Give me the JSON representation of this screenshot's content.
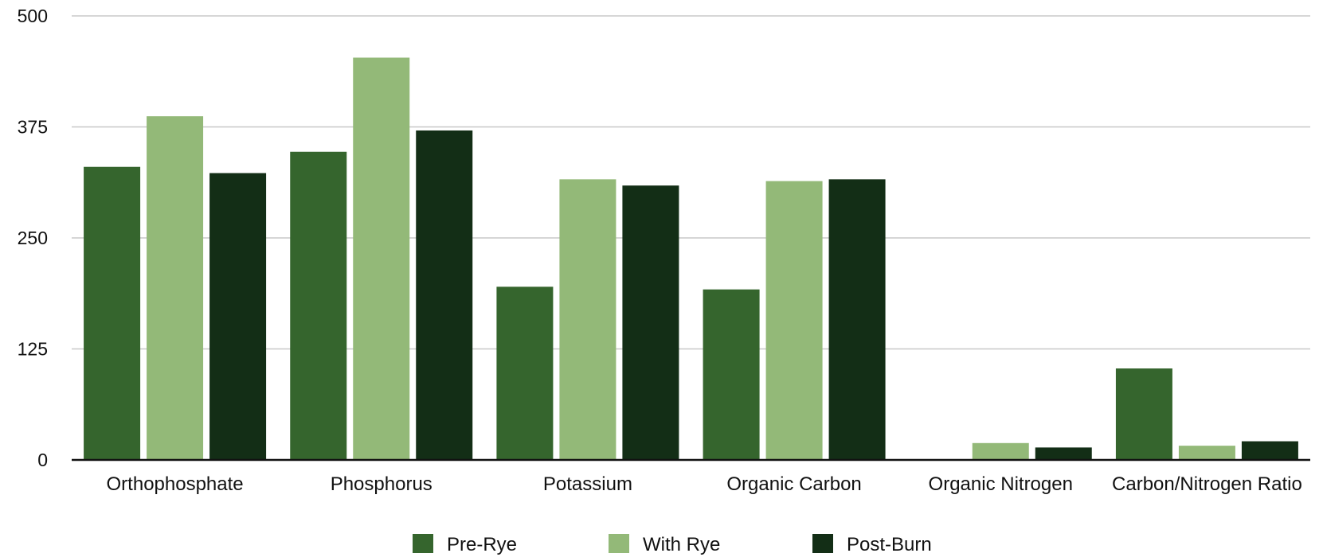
{
  "chart_data": {
    "type": "bar",
    "title": "",
    "xlabel": "",
    "ylabel": "",
    "ylim": [
      0,
      500
    ],
    "yticks": [
      "0",
      "125",
      "250",
      "375",
      "500"
    ],
    "grid": true,
    "legend_position": "bottom-center",
    "categories": [
      "Orthophosphate",
      "Phosphorus",
      "Potassium",
      "Organic Carbon",
      "Organic Nitrogen",
      "Carbon/Nitrogen Ratio"
    ],
    "series": [
      {
        "name": "Pre-Rye",
        "color": "#35652d",
        "values": [
          330,
          347,
          195,
          192,
          0,
          103
        ]
      },
      {
        "name": "With Rye",
        "color": "#93b978",
        "values": [
          387,
          453,
          316,
          314,
          19,
          16
        ]
      },
      {
        "name": "Post-Burn",
        "color": "#132e16",
        "values": [
          323,
          371,
          309,
          316,
          14,
          21
        ]
      }
    ]
  }
}
